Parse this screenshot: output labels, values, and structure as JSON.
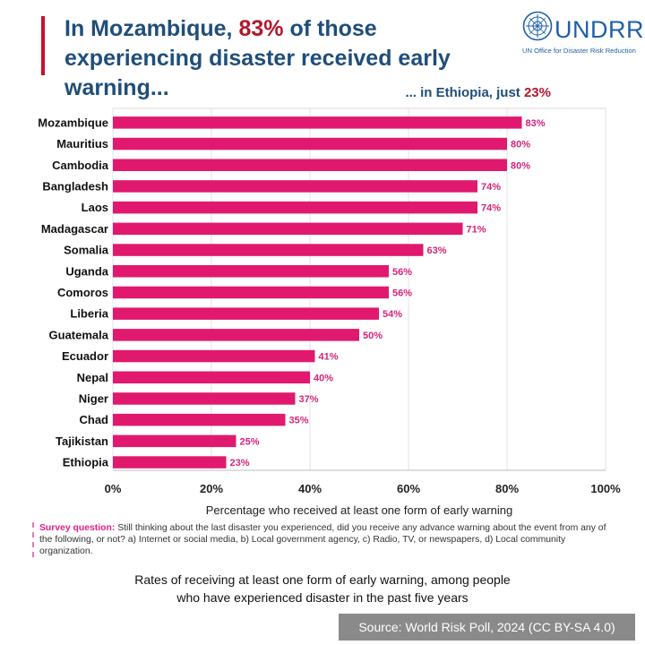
{
  "header": {
    "title_part1": "In Mozambique, ",
    "title_highlight": "83%",
    "title_part2": " of those experiencing disaster received early warning...",
    "subtitle_prefix": "... in Ethiopia,  just ",
    "subtitle_highlight": "23%"
  },
  "logo": {
    "word": "UNDRR",
    "subtitle": "UN Office for Disaster Risk Reduction",
    "icon": "un-emblem-icon"
  },
  "colors": {
    "bar": "#e0196f",
    "label": "#d6247a",
    "title": "#1f4e79",
    "highlight": "#b2182b"
  },
  "chart_data": {
    "type": "bar",
    "orientation": "horizontal",
    "categories": [
      "Mozambique",
      "Mauritius",
      "Cambodia",
      "Bangladesh",
      "Laos",
      "Madagascar",
      "Somalia",
      "Uganda",
      "Comoros",
      "Liberia",
      "Guatemala",
      "Ecuador",
      "Nepal",
      "Niger",
      "Chad",
      "Tajikistan",
      "Ethiopia"
    ],
    "values": [
      83,
      80,
      80,
      74,
      74,
      71,
      63,
      56,
      56,
      54,
      50,
      41,
      40,
      37,
      35,
      25,
      23
    ],
    "value_labels": [
      "83%",
      "80%",
      "80%",
      "74%",
      "74%",
      "71%",
      "63%",
      "56%",
      "56%",
      "54%",
      "50%",
      "41%",
      "40%",
      "37%",
      "35%",
      "25%",
      "23%"
    ],
    "xlim": [
      0,
      100
    ],
    "xticks": [
      "0%",
      "20%",
      "40%",
      "60%",
      "80%",
      "100%"
    ],
    "xlabel": "Percentage who received at least one form of early warning",
    "grid": true
  },
  "survey": {
    "label": "Survey question:",
    "text": " Still thinking about the last disaster you experienced, did you receive any advance warning about the event from any of the following, or not? a) Internet or social media, b) Local government agency, c) Radio, TV, or newspapers, d) Local community organization."
  },
  "caption": {
    "line1": "Rates of receiving at least one form of early warning, among people",
    "line2": "who have experienced disaster in the past five years"
  },
  "source": "Source:  World Risk Poll, 2024 (CC BY-SA 4.0)"
}
